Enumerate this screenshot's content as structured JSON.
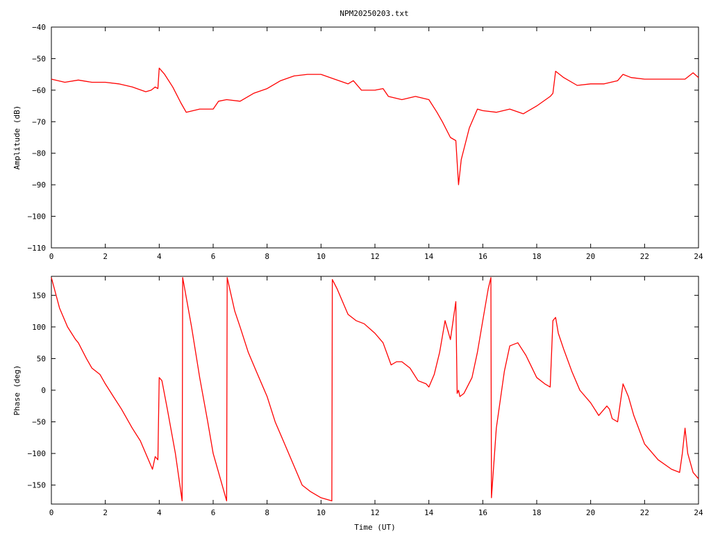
{
  "chart_data": [
    {
      "type": "line",
      "title": "NPM20250203.txt",
      "xlabel": "",
      "ylabel": "Amplitude (dB)",
      "xlim": [
        0,
        24
      ],
      "ylim": [
        -110,
        -40
      ],
      "x_ticks": [
        0,
        2,
        4,
        6,
        8,
        10,
        12,
        14,
        16,
        18,
        20,
        22,
        24
      ],
      "y_ticks": [
        -40,
        -50,
        -60,
        -70,
        -80,
        -90,
        -100,
        -110
      ],
      "grid": false,
      "color": "#ff0000",
      "series": [
        {
          "x": [
            0,
            0.5,
            1.0,
            1.5,
            2.0,
            2.5,
            3.0,
            3.5,
            3.7,
            3.85,
            3.95,
            4.0,
            4.2,
            4.5,
            4.8,
            5.0,
            5.5,
            6.0,
            6.2,
            6.5,
            7.0,
            7.5,
            8.0,
            8.5,
            9.0,
            9.5,
            10.0,
            10.5,
            11.0,
            11.2,
            11.5,
            12.0,
            12.3,
            12.5,
            13.0,
            13.5,
            14.0,
            14.3,
            14.5,
            14.8,
            15.0,
            15.1,
            15.2,
            15.5,
            15.8,
            16.0,
            16.5,
            17.0,
            17.5,
            18.0,
            18.5,
            18.6,
            18.7,
            19.0,
            19.5,
            20.0,
            20.5,
            21.0,
            21.2,
            21.5,
            22.0,
            22.5,
            23.0,
            23.5,
            23.8,
            24.0
          ],
          "y": [
            -56.5,
            -57.5,
            -56.8,
            -57.5,
            -57.5,
            -58.0,
            -59.0,
            -60.5,
            -60.0,
            -59.0,
            -59.5,
            -53.0,
            -55.0,
            -59.0,
            -64.0,
            -67.0,
            -66.0,
            -66.0,
            -63.5,
            -63.0,
            -63.5,
            -61.0,
            -59.5,
            -57.0,
            -55.5,
            -55.0,
            -55.0,
            -56.5,
            -58.0,
            -57.0,
            -60.0,
            -60.0,
            -59.5,
            -62.0,
            -63.0,
            -62.0,
            -63.0,
            -67.0,
            -70.0,
            -75.0,
            -76.0,
            -90.0,
            -82.0,
            -72.0,
            -66.0,
            -66.5,
            -67.0,
            -66.0,
            -67.5,
            -65.0,
            -62.0,
            -61.0,
            -54.0,
            -56.0,
            -58.5,
            -58.0,
            -58.0,
            -57.0,
            -55.0,
            -56.0,
            -56.5,
            -56.5,
            -56.5,
            -56.5,
            -54.5,
            -56.0
          ]
        }
      ]
    },
    {
      "type": "line",
      "title": "",
      "xlabel": "Time (UT)",
      "ylabel": "Phase (deg)",
      "xlim": [
        0,
        24
      ],
      "ylim": [
        -180,
        180
      ],
      "x_ticks": [
        0,
        2,
        4,
        6,
        8,
        10,
        12,
        14,
        16,
        18,
        20,
        22,
        24
      ],
      "y_ticks": [
        150,
        100,
        50,
        0,
        -50,
        -100,
        -150
      ],
      "grid": false,
      "color": "#ff0000",
      "series": [
        {
          "x": [
            0,
            0.3,
            0.6,
            0.9,
            1.0,
            1.3,
            1.5,
            1.8,
            2.0,
            2.3,
            2.6,
            3.0,
            3.3,
            3.6,
            3.75,
            3.85,
            3.95,
            4.0,
            4.1,
            4.3,
            4.6,
            4.85,
            4.86,
            4.87,
            5.2,
            5.5,
            5.8,
            6.0,
            6.2,
            6.5,
            6.51,
            6.52,
            6.8,
            7.0,
            7.3,
            7.6,
            8.0,
            8.3,
            8.6,
            9.0,
            9.3,
            9.6,
            10.0,
            10.4,
            10.41,
            10.42,
            10.6,
            11.0,
            11.3,
            11.6,
            12.0,
            12.3,
            12.6,
            12.8,
            13.0,
            13.3,
            13.6,
            13.9,
            14.0,
            14.2,
            14.4,
            14.6,
            14.8,
            15.0,
            15.05,
            15.1,
            15.15,
            15.3,
            15.6,
            15.8,
            16.0,
            16.2,
            16.3,
            16.31,
            16.32,
            16.5,
            16.8,
            17.0,
            17.3,
            17.6,
            18.0,
            18.3,
            18.5,
            18.6,
            18.7,
            18.8,
            19.0,
            19.3,
            19.6,
            20.0,
            20.3,
            20.6,
            20.7,
            20.8,
            21.0,
            21.2,
            21.4,
            21.6,
            22.0,
            22.5,
            23.0,
            23.3,
            23.4,
            23.5,
            23.6,
            23.8,
            24.0
          ],
          "y": [
            178,
            130,
            100,
            80,
            75,
            50,
            35,
            25,
            10,
            -10,
            -30,
            -60,
            -80,
            -110,
            -125,
            -105,
            -110,
            20,
            15,
            -30,
            -100,
            -175,
            0,
            178,
            100,
            20,
            -50,
            -100,
            -130,
            -175,
            0,
            178,
            125,
            100,
            60,
            30,
            -10,
            -50,
            -80,
            -120,
            -150,
            -160,
            -170,
            -175,
            0,
            175,
            160,
            120,
            110,
            105,
            90,
            75,
            40,
            45,
            45,
            35,
            15,
            10,
            5,
            25,
            60,
            110,
            80,
            140,
            -5,
            0,
            -10,
            -5,
            20,
            60,
            110,
            160,
            178,
            0,
            -170,
            -60,
            30,
            70,
            75,
            55,
            20,
            10,
            5,
            110,
            115,
            90,
            65,
            30,
            0,
            -20,
            -40,
            -25,
            -30,
            -45,
            -50,
            10,
            -10,
            -40,
            -85,
            -110,
            -125,
            -130,
            -100,
            -60,
            -100,
            -130,
            -140
          ]
        }
      ]
    }
  ]
}
